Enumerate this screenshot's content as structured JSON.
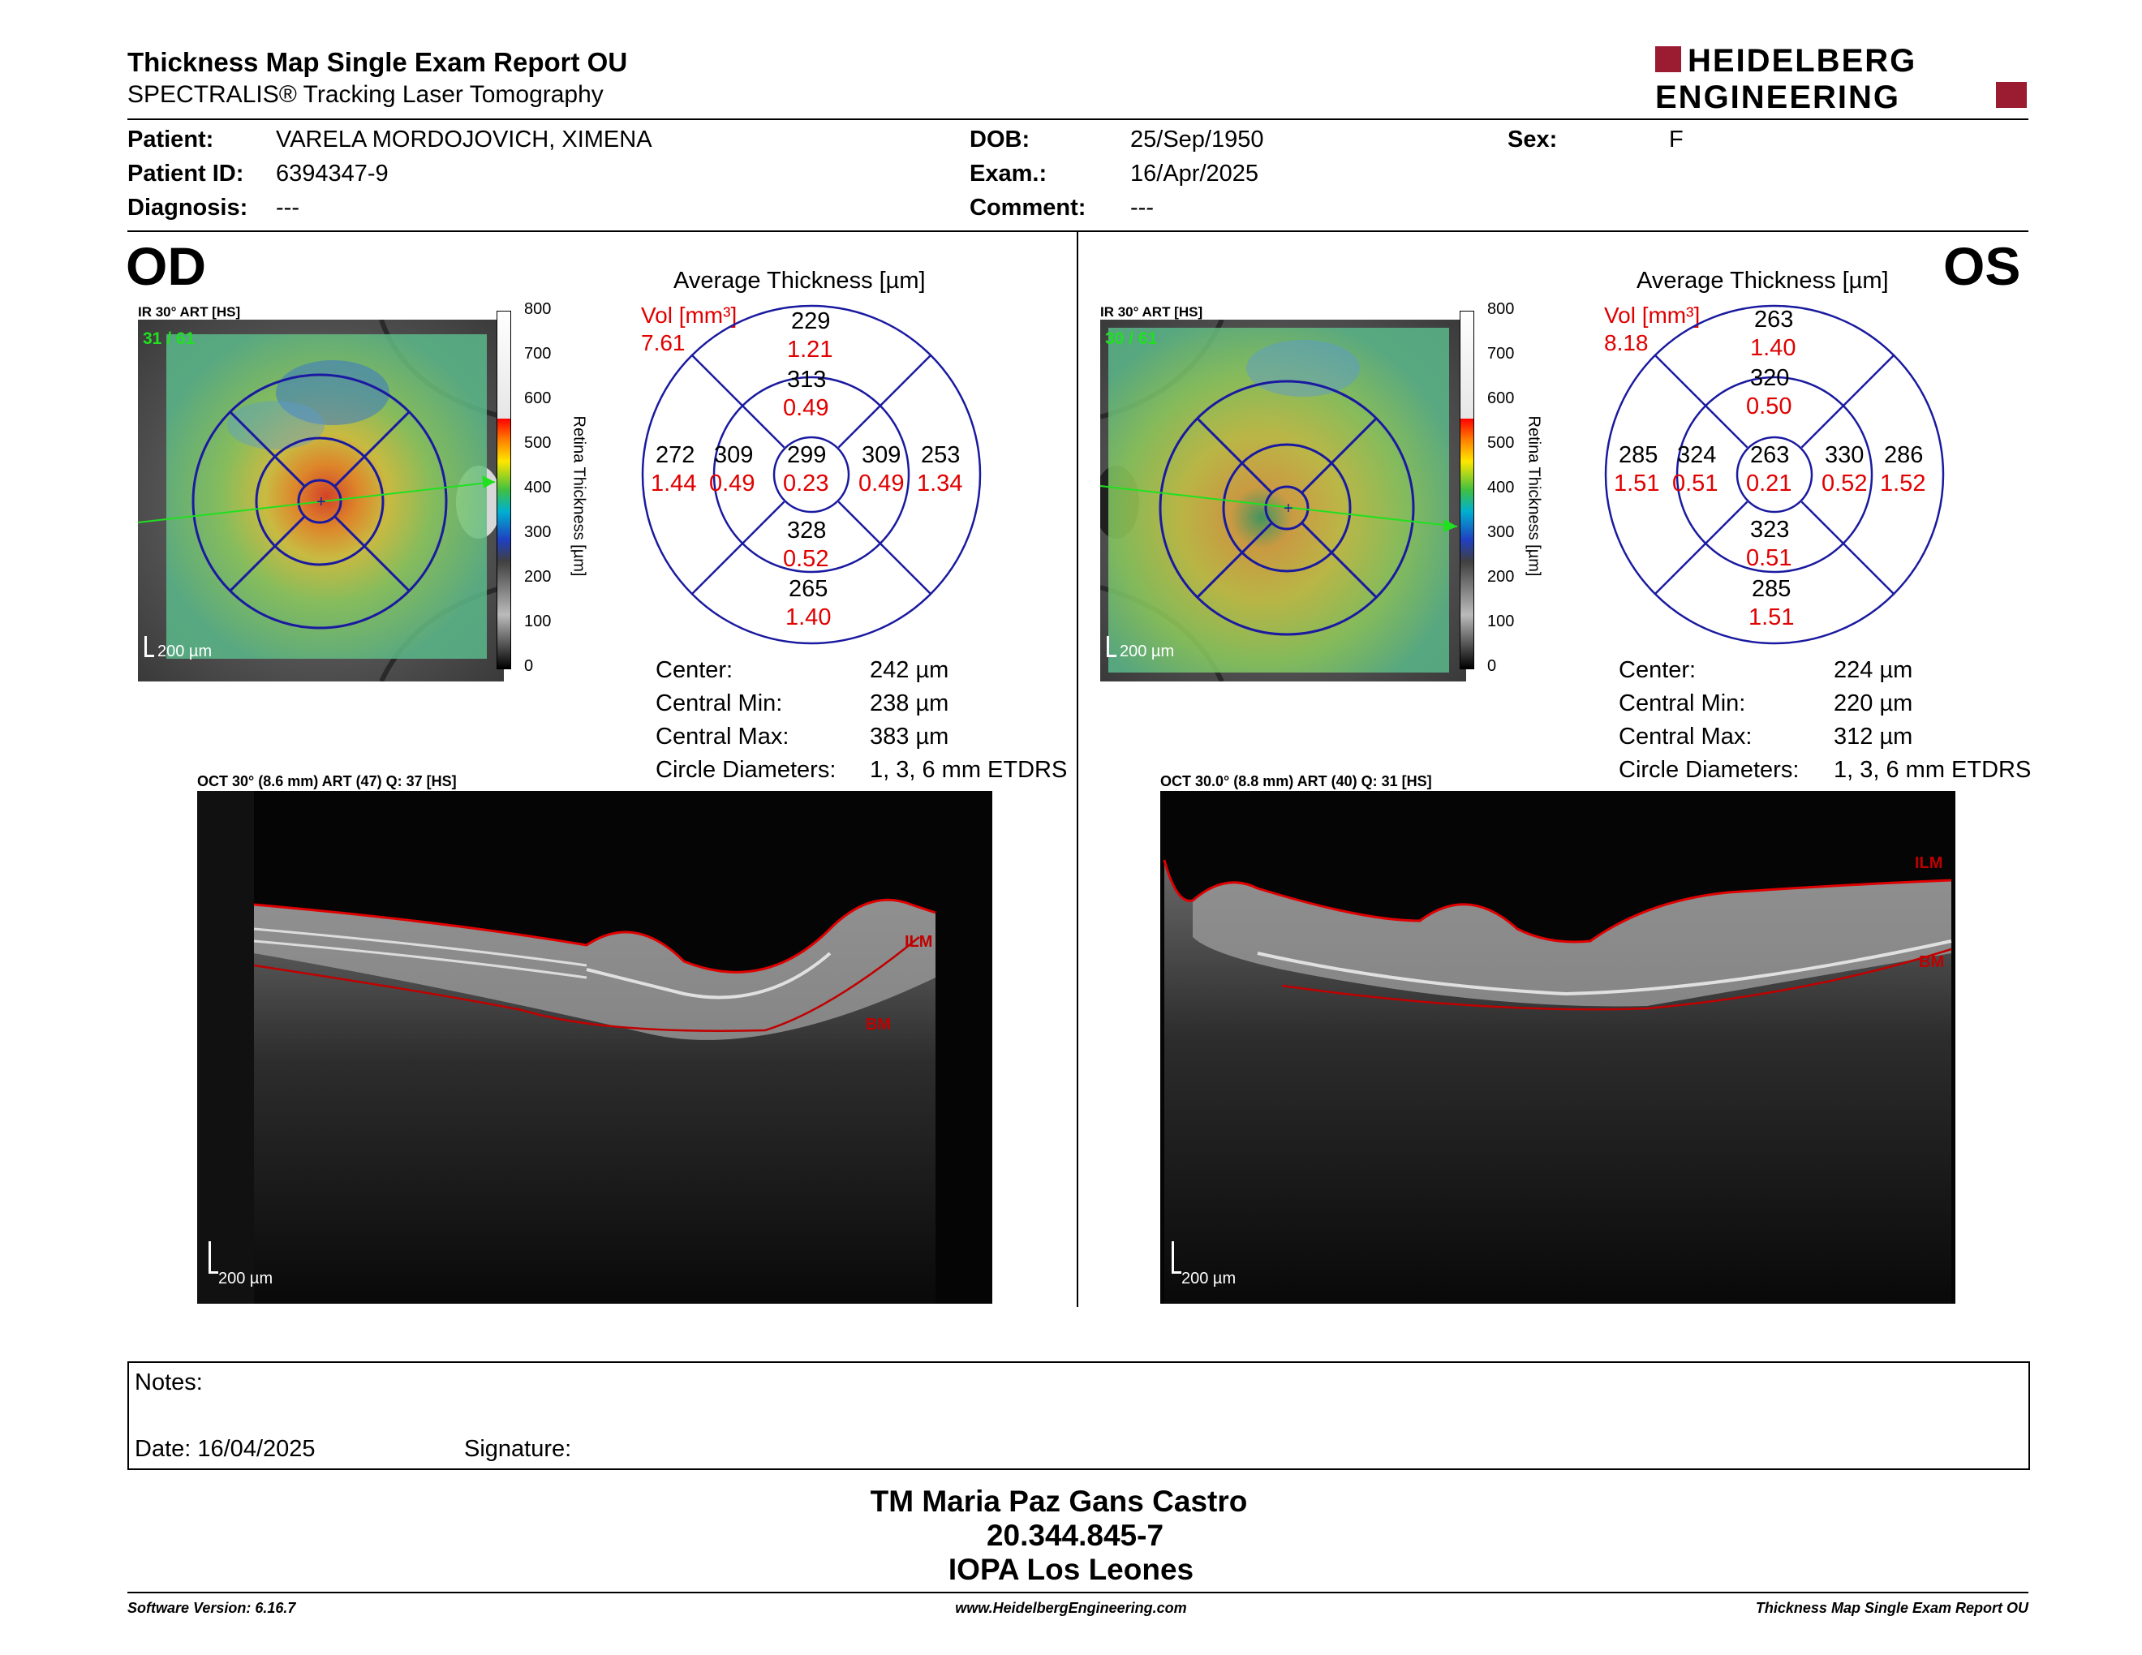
{
  "header": {
    "title": "Thickness Map Single Exam Report OU",
    "subtitle": "SPECTRALIS® Tracking Laser Tomography",
    "logo_line1": "HEIDELBERG",
    "logo_line2": "ENGINEERING",
    "brand_color": "#9b1b30"
  },
  "patient": {
    "patient_label": "Patient:",
    "patient_value": "VARELA MORDOJOVICH, XIMENA",
    "id_label": "Patient ID:",
    "id_value": "6394347-9",
    "diagnosis_label": "Diagnosis:",
    "diagnosis_value": "---",
    "dob_label": "DOB:",
    "dob_value": "25/Sep/1950",
    "exam_label": "Exam.:",
    "exam_value": "16/Apr/2025",
    "comment_label": "Comment:",
    "comment_value": "---",
    "sex_label": "Sex:",
    "sex_value": "F"
  },
  "od": {
    "eye": "OD",
    "ir_label": "IR 30° ART [HS]",
    "ir_quality": "31 / 61",
    "ir_scale": "200 µm",
    "colorbar_ticks": [
      "800",
      "700",
      "600",
      "500",
      "400",
      "300",
      "200",
      "100",
      "0"
    ],
    "colorbar_title": "Retina Thickness [µm]",
    "avg_title": "Average Thickness [µm]",
    "vol_label": "Vol [mm³]",
    "vol_value": "7.61",
    "sectors": {
      "center": {
        "t": "299",
        "v": "0.23"
      },
      "inner_sup": {
        "t": "313",
        "v": "0.49"
      },
      "inner_inf": {
        "t": "328",
        "v": "0.52"
      },
      "inner_left": {
        "t": "309",
        "v": "0.49"
      },
      "inner_right": {
        "t": "309",
        "v": "0.49"
      },
      "outer_sup": {
        "t": "229",
        "v": "1.21"
      },
      "outer_inf": {
        "t": "265",
        "v": "1.40"
      },
      "outer_left": {
        "t": "272",
        "v": "1.44"
      },
      "outer_right": {
        "t": "253",
        "v": "1.34"
      }
    },
    "stats": [
      {
        "label": "Center:",
        "value": "242 µm"
      },
      {
        "label": "Central Min:",
        "value": "238 µm"
      },
      {
        "label": "Central Max:",
        "value": "383 µm"
      },
      {
        "label": "Circle Diameters:",
        "value": "1, 3, 6 mm ETDRS"
      }
    ],
    "oct_label": "OCT 30° (8.6 mm) ART (47) Q: 37 [HS]",
    "oct_scale": "200 µm",
    "ilm": "ILM",
    "bm": "BM"
  },
  "os": {
    "eye": "OS",
    "ir_label": "IR 30° ART [HS]",
    "ir_quality": "30 / 61",
    "ir_scale": "200 µm",
    "colorbar_ticks": [
      "800",
      "700",
      "600",
      "500",
      "400",
      "300",
      "200",
      "100",
      "0"
    ],
    "colorbar_title": "Retina Thickness [µm]",
    "avg_title": "Average Thickness [µm]",
    "vol_label": "Vol [mm³]",
    "vol_value": "8.18",
    "sectors": {
      "center": {
        "t": "263",
        "v": "0.21"
      },
      "inner_sup": {
        "t": "320",
        "v": "0.50"
      },
      "inner_inf": {
        "t": "323",
        "v": "0.51"
      },
      "inner_left": {
        "t": "324",
        "v": "0.51"
      },
      "inner_right": {
        "t": "330",
        "v": "0.52"
      },
      "outer_sup": {
        "t": "263",
        "v": "1.40"
      },
      "outer_inf": {
        "t": "285",
        "v": "1.51"
      },
      "outer_left": {
        "t": "285",
        "v": "1.51"
      },
      "outer_right": {
        "t": "286",
        "v": "1.52"
      }
    },
    "stats": [
      {
        "label": "Center:",
        "value": "224 µm"
      },
      {
        "label": "Central Min:",
        "value": "220 µm"
      },
      {
        "label": "Central Max:",
        "value": "312 µm"
      },
      {
        "label": "Circle Diameters:",
        "value": "1, 3, 6 mm ETDRS"
      }
    ],
    "oct_label": "OCT 30.0° (8.8 mm) ART (40) Q: 31 [HS]",
    "oct_scale": "200 µm",
    "ilm": "ILM",
    "bm": "BM"
  },
  "notes": {
    "notes_label": "Notes:",
    "date_label": "Date: 16/04/2025",
    "signature_label": "Signature:"
  },
  "signer": {
    "name": "TM Maria Paz Gans Castro",
    "id": "20.344.845-7",
    "org": "IOPA Los Leones"
  },
  "footer": {
    "software": "Software Version: 6.16.7",
    "website": "www.HeidelbergEngineering.com",
    "report": "Thickness Map Single Exam Report OU"
  }
}
